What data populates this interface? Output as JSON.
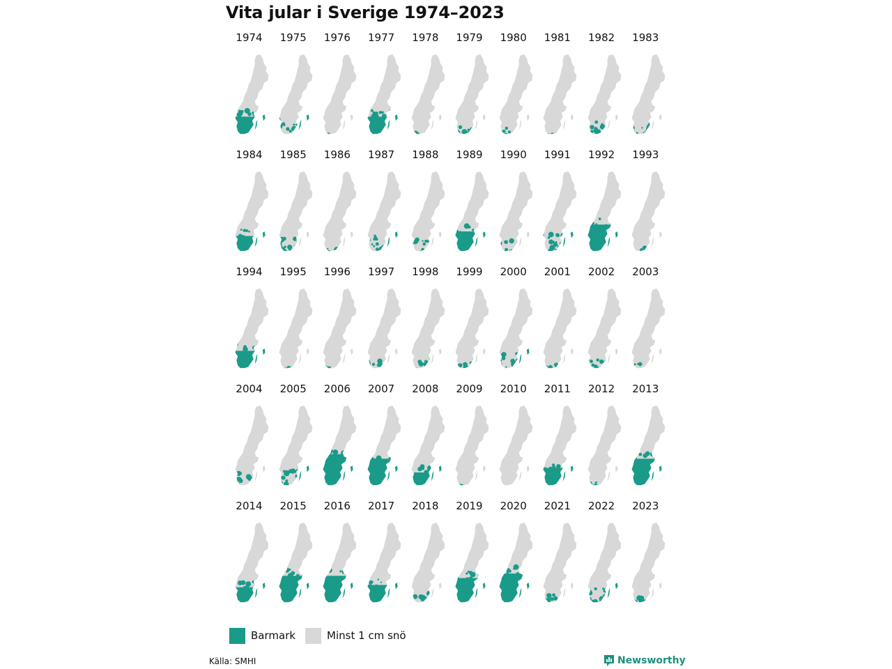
{
  "title": "Vita jular i Sverige 1974–2023",
  "colors": {
    "bare": "#1a9b89",
    "snow": "#d8d8d8",
    "brand": "#1f8f7e"
  },
  "legend": [
    {
      "label": "Barmark",
      "color": "#1a9b89"
    },
    {
      "label": "Minst 1 cm snö",
      "color": "#d8d8d8"
    }
  ],
  "source": "Källa: SMHI",
  "brand": "Newsworthy",
  "years": [
    {
      "year": "1974",
      "bare": 0.55
    },
    {
      "year": "1975",
      "bare": 0.35
    },
    {
      "year": "1976",
      "bare": 0.02
    },
    {
      "year": "1977",
      "bare": 0.55
    },
    {
      "year": "1978",
      "bare": 0.05
    },
    {
      "year": "1979",
      "bare": 0.22
    },
    {
      "year": "1980",
      "bare": 0.22
    },
    {
      "year": "1981",
      "bare": 0.02
    },
    {
      "year": "1982",
      "bare": 0.3
    },
    {
      "year": "1983",
      "bare": 0.3
    },
    {
      "year": "1984",
      "bare": 0.5
    },
    {
      "year": "1985",
      "bare": 0.3
    },
    {
      "year": "1986",
      "bare": 0.08
    },
    {
      "year": "1987",
      "bare": 0.4
    },
    {
      "year": "1988",
      "bare": 0.3
    },
    {
      "year": "1989",
      "bare": 0.6
    },
    {
      "year": "1990",
      "bare": 0.3
    },
    {
      "year": "1991",
      "bare": 0.4
    },
    {
      "year": "1992",
      "bare": 0.75
    },
    {
      "year": "1993",
      "bare": 0.12
    },
    {
      "year": "1994",
      "bare": 0.55
    },
    {
      "year": "1995",
      "bare": 0.05
    },
    {
      "year": "1996",
      "bare": 0.05
    },
    {
      "year": "1997",
      "bare": 0.2
    },
    {
      "year": "1998",
      "bare": 0.25
    },
    {
      "year": "1999",
      "bare": 0.15
    },
    {
      "year": "2000",
      "bare": 0.35
    },
    {
      "year": "2001",
      "bare": 0.1
    },
    {
      "year": "2002",
      "bare": 0.25
    },
    {
      "year": "2003",
      "bare": 0.12
    },
    {
      "year": "2004",
      "bare": 0.3
    },
    {
      "year": "2005",
      "bare": 0.35
    },
    {
      "year": "2006",
      "bare": 0.85
    },
    {
      "year": "2007",
      "bare": 0.75
    },
    {
      "year": "2008",
      "bare": 0.45
    },
    {
      "year": "2009",
      "bare": 0.02
    },
    {
      "year": "2010",
      "bare": 0.0
    },
    {
      "year": "2011",
      "bare": 0.55
    },
    {
      "year": "2012",
      "bare": 0.1
    },
    {
      "year": "2013",
      "bare": 0.75
    },
    {
      "year": "2014",
      "bare": 0.5
    },
    {
      "year": "2015",
      "bare": 0.75
    },
    {
      "year": "2016",
      "bare": 0.75
    },
    {
      "year": "2017",
      "bare": 0.55
    },
    {
      "year": "2018",
      "bare": 0.25
    },
    {
      "year": "2019",
      "bare": 0.7
    },
    {
      "year": "2020",
      "bare": 0.8
    },
    {
      "year": "2021",
      "bare": 0.2
    },
    {
      "year": "2022",
      "bare": 0.35
    },
    {
      "year": "2023",
      "bare": 0.12
    }
  ]
}
